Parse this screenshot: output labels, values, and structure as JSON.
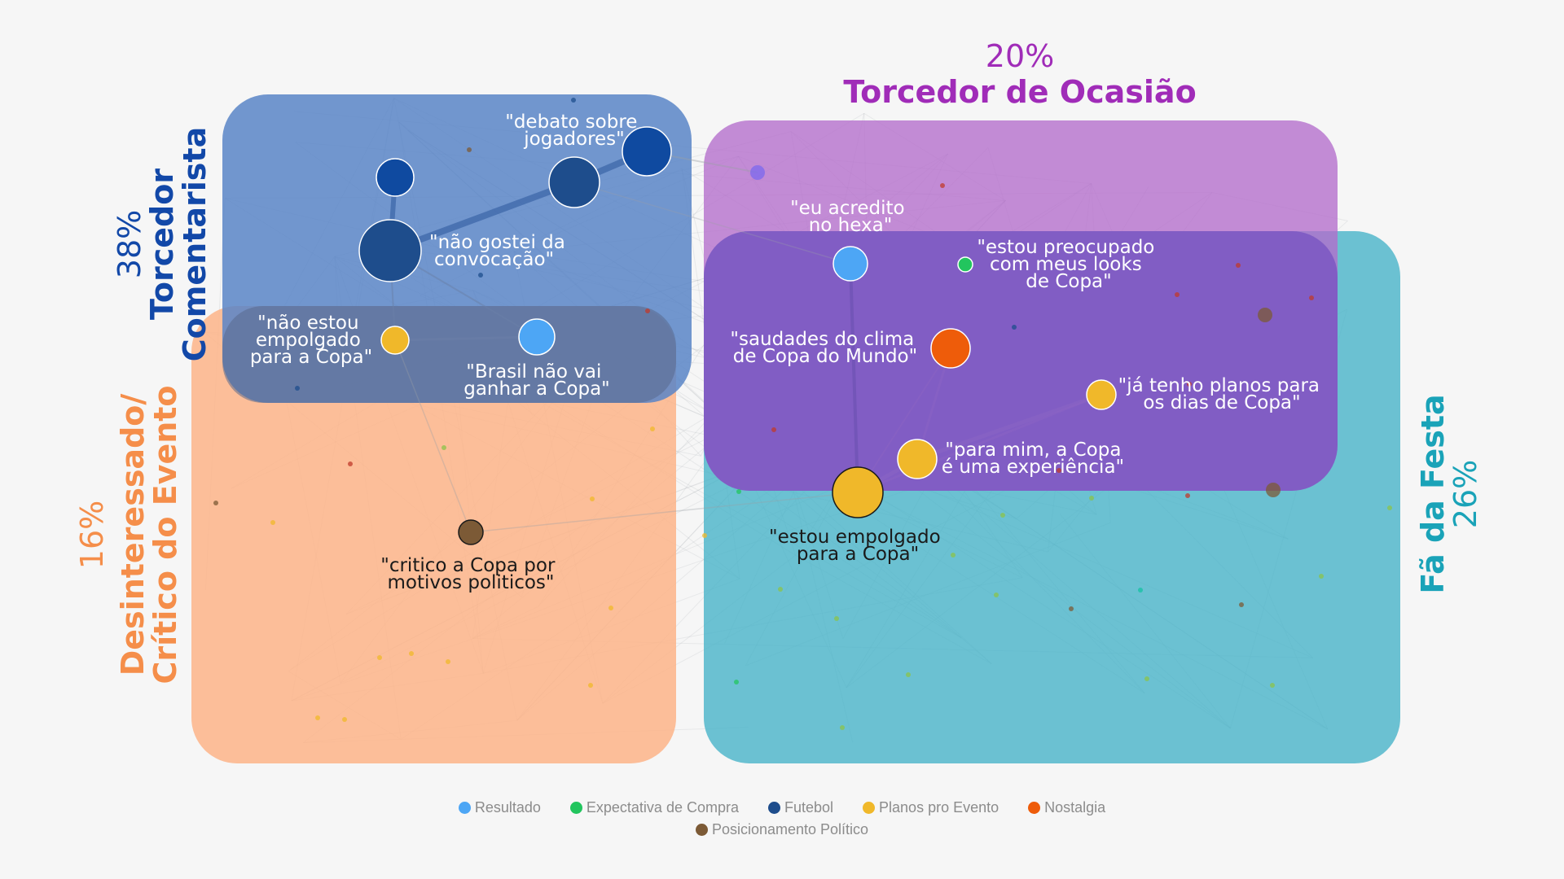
{
  "colors": {
    "resultado": "#4da6f5",
    "expectativa": "#22c55e",
    "futebol": "#1e4d8c",
    "planos": "#f0b82a",
    "nostalgia": "#ee5c0a",
    "politico": "#7c5a36",
    "blue_region": "#5985c7",
    "purple_region": "#b46dcc",
    "teal_region": "#4cb5c9",
    "orange_region": "#fdb488"
  },
  "segments": {
    "comentarista": {
      "pct": "38%",
      "title_line1": "Torcedor",
      "title_line2": "Comentarista",
      "color": "#1248a8"
    },
    "ocasiao": {
      "pct": "20%",
      "title": "Torcedor de Ocasião",
      "color": "#a02cb8"
    },
    "festa": {
      "pct": "26%",
      "title": "Fã da Festa",
      "color": "#1aa3b8"
    },
    "desinteressado": {
      "pct": "16%",
      "title_line1": "Desinteressado/",
      "title_line2": "Crítico do Evento",
      "color": "#f58e4a"
    }
  },
  "quotes": {
    "debate": [
      "\"debato sobre",
      "jogadores\""
    ],
    "convocacao": [
      "\"não gostei da",
      "convocação\""
    ],
    "nao_empolgado": [
      "\"não estou",
      "empolgado",
      "para a Copa\""
    ],
    "brasil": [
      "\"Brasil não vai",
      "ganhar a Copa\""
    ],
    "hexa": [
      "\"eu acredito",
      "no hexa\""
    ],
    "looks": [
      "\"estou preocupado",
      "com meus looks",
      "de Copa\""
    ],
    "saudades": [
      "\"saudades do clima",
      "de Copa do Mundo\""
    ],
    "planos": [
      "\"já tenho planos para",
      "os dias de Copa\""
    ],
    "experiencia": [
      "\"para mim, a Copa",
      "é uma experiência\""
    ],
    "empolgado": [
      "\"estou empolgado",
      "para a Copa\""
    ],
    "critico": [
      "\"critico a Copa por",
      "motivos politicos\""
    ]
  },
  "legend": {
    "row1": [
      {
        "label": "Resultado",
        "color": "#4da6f5"
      },
      {
        "label": "Expectativa de Compra",
        "color": "#22c55e"
      },
      {
        "label": "Futebol",
        "color": "#1e4d8c"
      },
      {
        "label": "Planos pro Evento",
        "color": "#f0b82a"
      },
      {
        "label": "Nostalgia",
        "color": "#ee5c0a"
      }
    ],
    "row2": [
      {
        "label": "Posicionamento Político",
        "color": "#7c5a36"
      }
    ]
  }
}
